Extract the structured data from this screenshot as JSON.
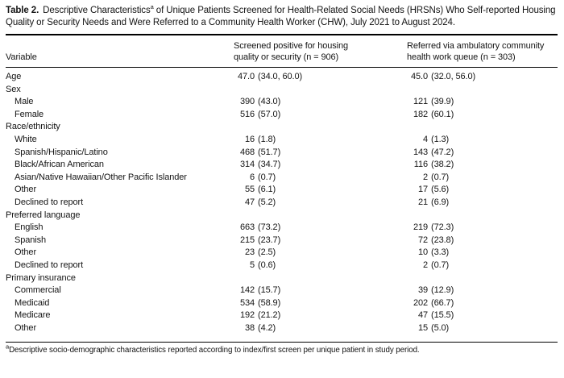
{
  "title": {
    "label": "Table 2.",
    "text_before_sup": "Descriptive Characteristics",
    "sup": "a",
    "text_after_sup": " of Unique Patients Screened for Health-Related Social Needs (HRSNs) Who Self-reported Housing Quality or Security Needs and Were Referred to a Community Health Worker (CHW), July 2021 to August 2024."
  },
  "columns": {
    "variable": "Variable",
    "screened": "Screened positive for housing quality or security (n = 906)",
    "referred": "Referred via ambulatory community health work queue (n = 303)"
  },
  "rows": [
    {
      "label": "Age",
      "indent": 0,
      "screened": "47.0 (34.0, 60.0)",
      "referred": "45.0 (32.0, 56.0)"
    },
    {
      "label": "Sex",
      "indent": 0,
      "screened": "",
      "referred": ""
    },
    {
      "label": "Male",
      "indent": 1,
      "screened": "390 (43.0)",
      "referred": "121 (39.9)"
    },
    {
      "label": "Female",
      "indent": 1,
      "screened": "516 (57.0)",
      "referred": "182 (60.1)"
    },
    {
      "label": "Race/ethnicity",
      "indent": 0,
      "screened": "",
      "referred": ""
    },
    {
      "label": "White",
      "indent": 1,
      "screened": "16 (1.8)",
      "referred": "4 (1.3)"
    },
    {
      "label": "Spanish/Hispanic/Latino",
      "indent": 1,
      "screened": "468 (51.7)",
      "referred": "143 (47.2)"
    },
    {
      "label": "Black/African American",
      "indent": 1,
      "screened": "314 (34.7)",
      "referred": "116 (38.2)"
    },
    {
      "label": "Asian/Native Hawaiian/Other Pacific Islander",
      "indent": 1,
      "screened": "6 (0.7)",
      "referred": "2 (0.7)"
    },
    {
      "label": "Other",
      "indent": 1,
      "screened": "55 (6.1)",
      "referred": "17 (5.6)"
    },
    {
      "label": "Declined to report",
      "indent": 1,
      "screened": "47 (5.2)",
      "referred": "21 (6.9)"
    },
    {
      "label": "Preferred language",
      "indent": 0,
      "screened": "",
      "referred": ""
    },
    {
      "label": "English",
      "indent": 1,
      "screened": "663 (73.2)",
      "referred": "219 (72.3)"
    },
    {
      "label": "Spanish",
      "indent": 1,
      "screened": "215 (23.7)",
      "referred": "72 (23.8)"
    },
    {
      "label": "Other",
      "indent": 1,
      "screened": "23 (2.5)",
      "referred": "10 (3.3)"
    },
    {
      "label": "Declined to report",
      "indent": 1,
      "screened": "5 (0.6)",
      "referred": "2 (0.7)"
    },
    {
      "label": "Primary insurance",
      "indent": 0,
      "screened": "",
      "referred": ""
    },
    {
      "label": "Commercial",
      "indent": 1,
      "screened": "142 (15.7)",
      "referred": "39 (12.9)"
    },
    {
      "label": "Medicaid",
      "indent": 1,
      "screened": "534 (58.9)",
      "referred": "202 (66.7)"
    },
    {
      "label": "Medicare",
      "indent": 1,
      "screened": "192 (21.2)",
      "referred": "47 (15.5)"
    },
    {
      "label": "Other",
      "indent": 1,
      "screened": "38 (4.2)",
      "referred": "15 (5.0)"
    }
  ],
  "footnote": {
    "sup": "a",
    "text": "Descriptive socio-demographic characteristics reported according to index/first screen per unique patient in study period."
  },
  "colors": {
    "text": "#141414",
    "rule": "#000000",
    "background": "#ffffff"
  }
}
